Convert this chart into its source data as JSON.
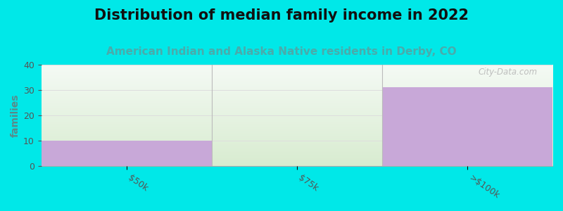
{
  "title": "Distribution of median family income in 2022",
  "subtitle": "American Indian and Alaska Native residents in Derby, CO",
  "categories": [
    "$50k",
    "$75k",
    ">$100k"
  ],
  "values": [
    10,
    0,
    31
  ],
  "bar_max": 40,
  "bar_color": "#c8a8d8",
  "bar_bg_color_bottom": "#d8ecd0",
  "bar_bg_color_top": "#f5faf5",
  "background_color": "#00e8e8",
  "plot_bg_color": "#ffffff",
  "ylabel": "families",
  "ylim": [
    0,
    40
  ],
  "yticks": [
    0,
    10,
    20,
    30,
    40
  ],
  "title_fontsize": 15,
  "subtitle_fontsize": 11,
  "subtitle_color": "#4aabab",
  "ylabel_color": "#5a8a8a",
  "ytick_color": "#555555",
  "xtick_color": "#555555",
  "watermark": "City-Data.com",
  "grid_color": "#dddddd",
  "separator_color": "#bbbbbb"
}
